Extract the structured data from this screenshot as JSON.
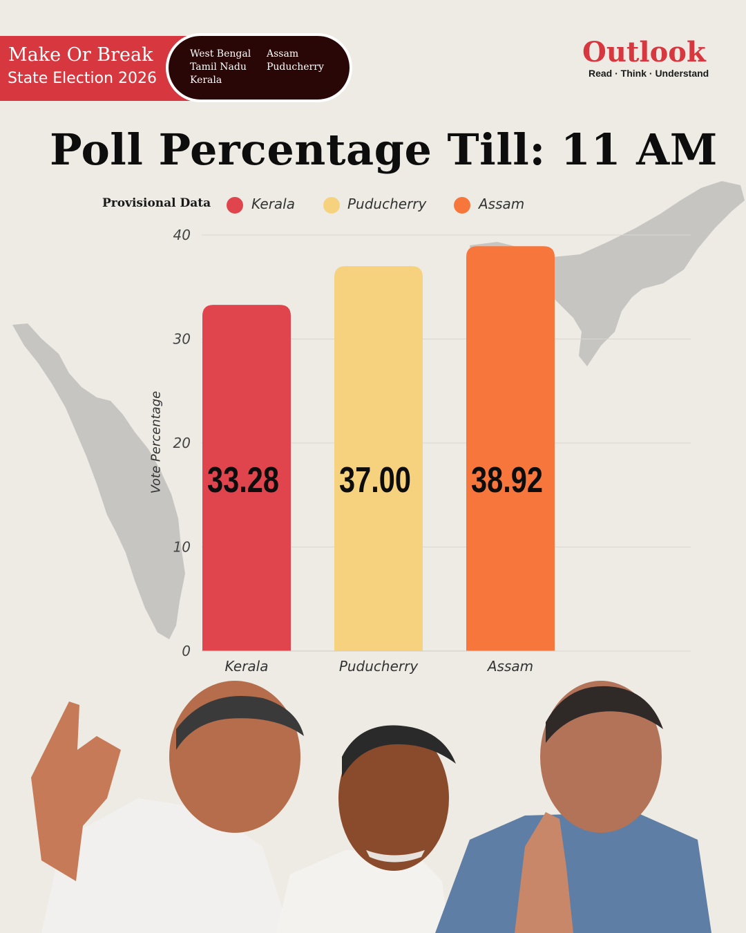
{
  "header": {
    "series_title": "Make Or Break",
    "series_subtitle": "State Election 2026",
    "states": [
      "West Bengal",
      "Tamil Nadu",
      "Kerala",
      "Assam",
      "Puducherry"
    ]
  },
  "logo": {
    "name": "Outlook",
    "tagline": "Read · Think · Understand"
  },
  "title": "Poll Percentage Till: 11 AM",
  "legend_lead": "Provisional Data",
  "colors": {
    "kerala": "#e0454e",
    "puducherry": "#f7d27e",
    "assam": "#f6763c",
    "brand": "#d7373f"
  },
  "chart_data": {
    "type": "bar",
    "categories": [
      "Kerala",
      "Puducherry",
      "Assam"
    ],
    "values": [
      33.28,
      37.0,
      38.92
    ],
    "value_labels": [
      "33.28",
      "37.00",
      "38.92"
    ],
    "legend": [
      "Kerala",
      "Puducherry",
      "Assam"
    ],
    "ylabel": "Vote Percentage",
    "xlabel": "",
    "ylim": [
      0,
      40
    ],
    "yticks": [
      0,
      10,
      20,
      30,
      40
    ],
    "grid": true,
    "legend_position": "top"
  }
}
